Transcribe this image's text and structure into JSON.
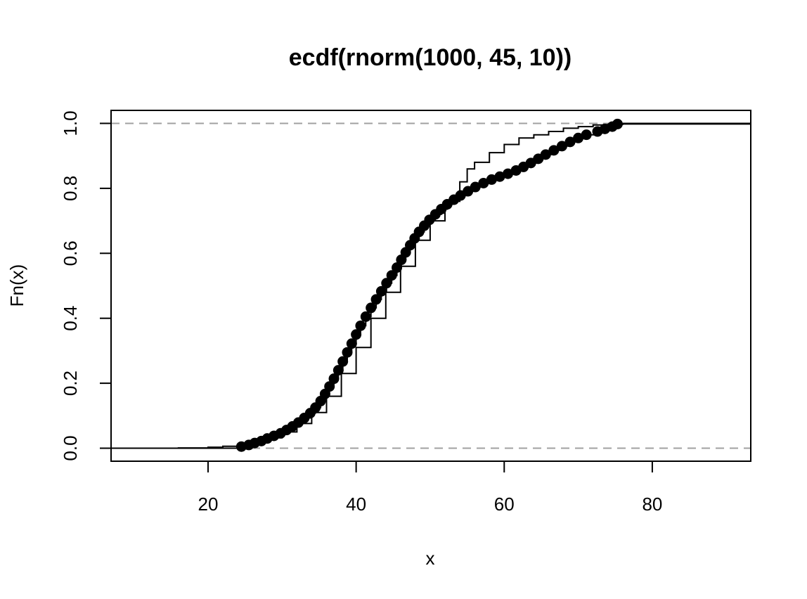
{
  "chart_data": {
    "type": "line",
    "title": "ecdf(rnorm(1000, 45, 10))",
    "xlabel": "x",
    "ylabel": "Fn(x)",
    "xlim": [
      6.9,
      93.3
    ],
    "ylim": [
      -0.04,
      1.04
    ],
    "xticks": [
      20,
      40,
      60,
      80
    ],
    "yticks": [
      0.0,
      0.2,
      0.4,
      0.6,
      0.8,
      1.0
    ],
    "xtick_labels": [
      "20",
      "40",
      "60",
      "80"
    ],
    "ytick_labels": [
      "0.0",
      "0.2",
      "0.4",
      "0.6",
      "0.8",
      "1.0"
    ],
    "grid": false,
    "reference_lines": [
      0.0,
      1.0
    ],
    "colors": {
      "data": "#000000",
      "reference": "#a0a0a0"
    },
    "series": [
      {
        "style": "points",
        "x": [
          24.5,
          25.5,
          26.3,
          27.2,
          28.0,
          28.9,
          29.8,
          30.6,
          31.4,
          32.2,
          33.0,
          33.8,
          34.5,
          35.2,
          35.8,
          36.4,
          37.0,
          37.6,
          38.2,
          38.8,
          39.4,
          40.0,
          40.6,
          41.3,
          42.0,
          42.7,
          43.4,
          44.1,
          44.8,
          45.5,
          46.1,
          46.7,
          47.3,
          47.9,
          48.5,
          49.2,
          49.9,
          50.7,
          51.5,
          52.3,
          53.2,
          54.1,
          55.1,
          56.1,
          57.2,
          58.3,
          59.4,
          60.5,
          61.6,
          62.6,
          63.6,
          64.6,
          65.6,
          66.7,
          67.8,
          68.9,
          70.0,
          71.1,
          72.6,
          73.6,
          74.6,
          75.3
        ],
        "y": [
          0.005,
          0.01,
          0.016,
          0.022,
          0.03,
          0.038,
          0.046,
          0.056,
          0.067,
          0.079,
          0.093,
          0.108,
          0.125,
          0.145,
          0.167,
          0.19,
          0.214,
          0.24,
          0.267,
          0.295,
          0.322,
          0.35,
          0.377,
          0.405,
          0.432,
          0.458,
          0.483,
          0.508,
          0.532,
          0.556,
          0.58,
          0.603,
          0.625,
          0.646,
          0.666,
          0.685,
          0.703,
          0.72,
          0.736,
          0.751,
          0.765,
          0.778,
          0.791,
          0.804,
          0.816,
          0.827,
          0.836,
          0.845,
          0.855,
          0.866,
          0.878,
          0.891,
          0.904,
          0.917,
          0.93,
          0.943,
          0.955,
          0.965,
          0.975,
          0.983,
          0.99,
          0.998
        ]
      },
      {
        "style": "line",
        "x": [
          6.9,
          16.0,
          20.0,
          22.0,
          24.0,
          26.0,
          28.0,
          30.0,
          32.0,
          34.0,
          36.0,
          38.0,
          40.0,
          42.0,
          44.0,
          46.0,
          48.0,
          50.0,
          52.0,
          54.0,
          55.0,
          56.0,
          58.0,
          60.0,
          62.0,
          64.0,
          66.0,
          68.0,
          70.0,
          72.0,
          74.0,
          76.0,
          93.3
        ],
        "y": [
          0.0,
          0.001,
          0.003,
          0.006,
          0.012,
          0.02,
          0.032,
          0.05,
          0.076,
          0.11,
          0.16,
          0.23,
          0.31,
          0.4,
          0.48,
          0.56,
          0.64,
          0.7,
          0.76,
          0.82,
          0.86,
          0.88,
          0.91,
          0.935,
          0.955,
          0.965,
          0.975,
          0.985,
          0.99,
          0.995,
          0.997,
          1.0,
          1.0
        ]
      }
    ]
  }
}
